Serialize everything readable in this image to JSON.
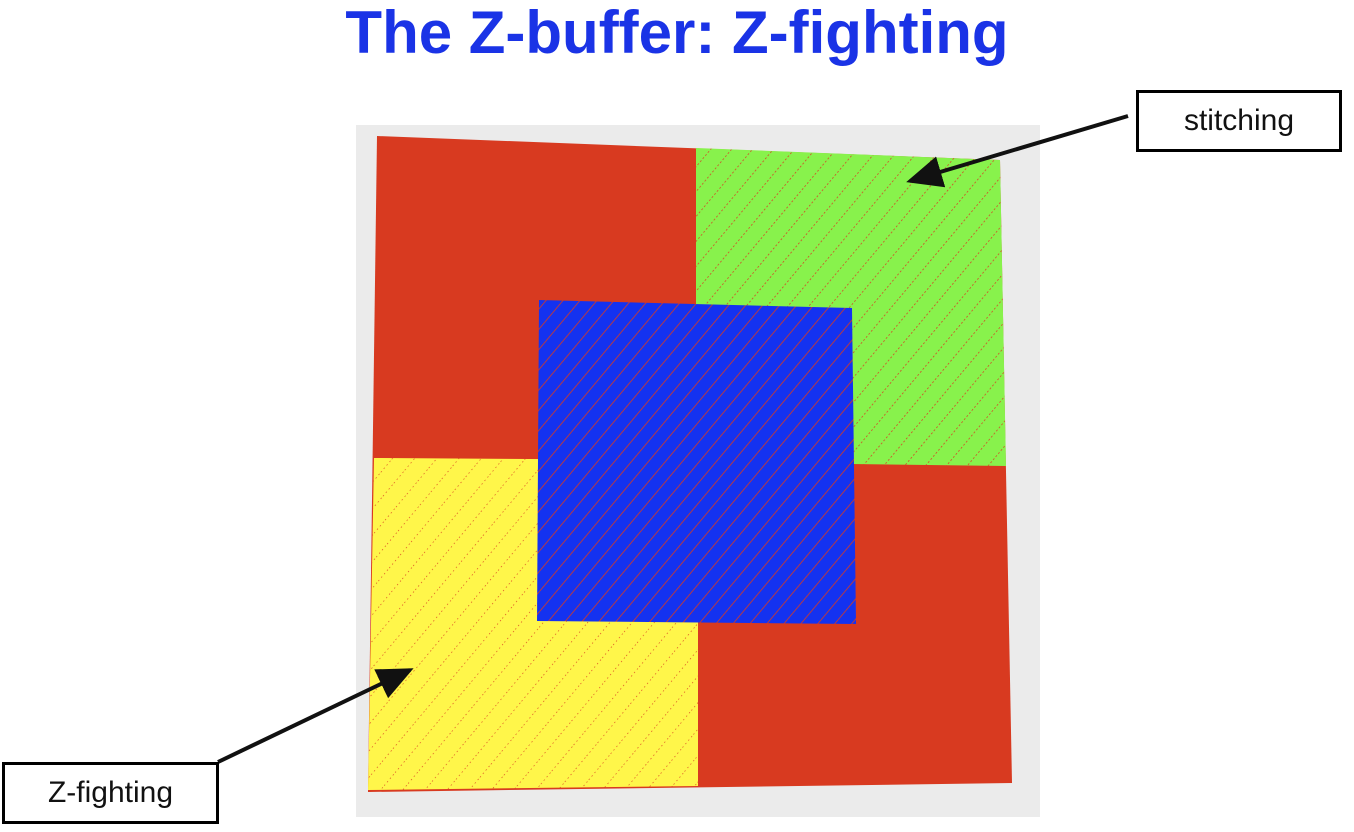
{
  "slide": {
    "title": "The Z-buffer: Z-fighting"
  },
  "callouts": {
    "stitching": "stitching",
    "zfighting": "Z-fighting"
  },
  "colors": {
    "title": "#1a33e6",
    "panel_background": "#ebebeb",
    "red": "#d83a20",
    "green": "#88f24c",
    "yellow": "#fff64a",
    "blue": "#1432f0",
    "artifact_stripes": "#d83a20"
  },
  "scene": {
    "quads": [
      "red-quad",
      "green-quad",
      "yellow-quad",
      "blue-quad"
    ],
    "artifacts": [
      "stitching",
      "z-fighting"
    ]
  }
}
